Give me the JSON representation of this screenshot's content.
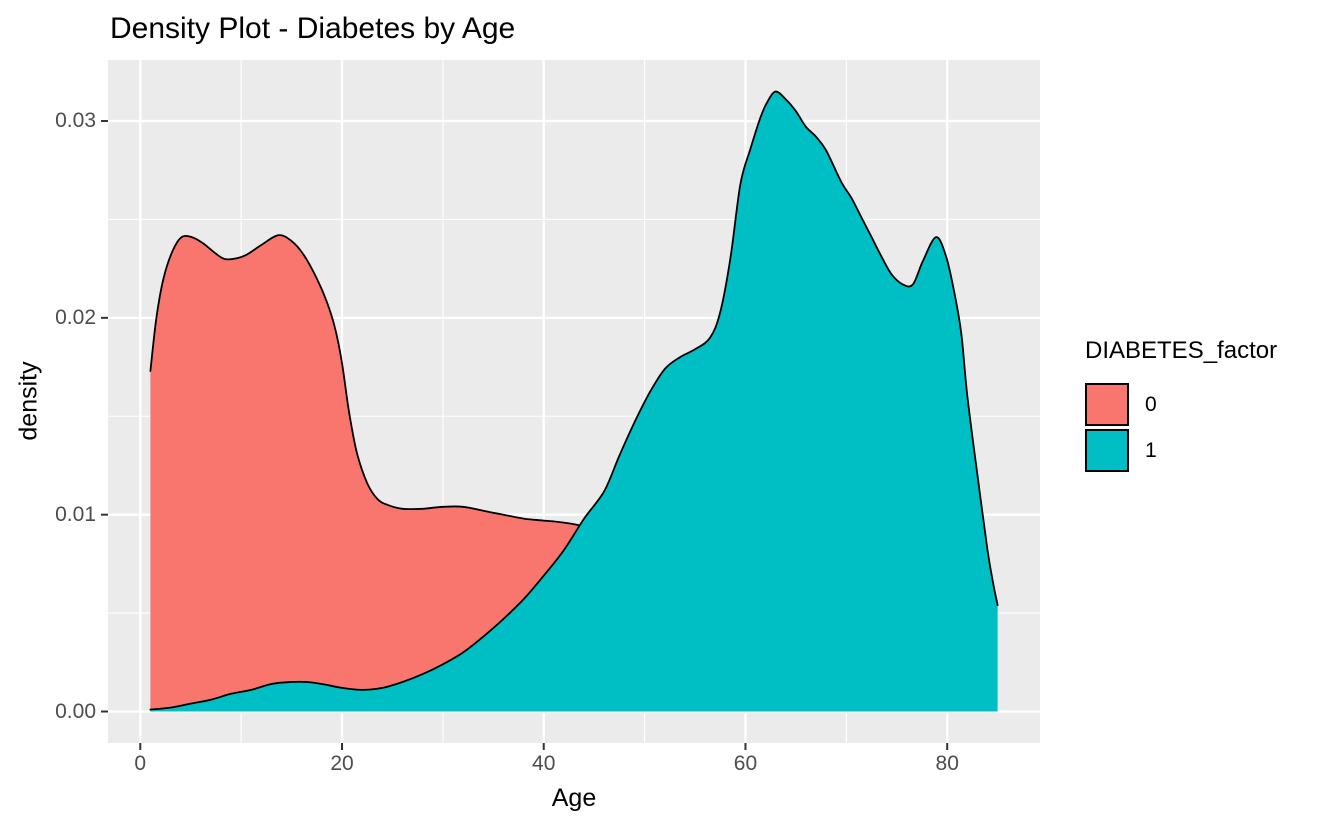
{
  "title": "Density Plot - Diabetes by Age",
  "legend": {
    "title": "DIABETES_factor",
    "entries": [
      {
        "label": "0",
        "color": "#F8766D"
      },
      {
        "label": "1",
        "color": "#00BFC4"
      }
    ]
  },
  "colors": {
    "panel_background": "#EBEBEB",
    "gridline": "#FFFFFF",
    "tick_label": "#4D4D4D",
    "tick_mark": "#333333",
    "curve_outline": "#000000"
  },
  "chart_data": {
    "type": "area",
    "subtype": "overlapping-density",
    "title": "Density Plot - Diabetes by Age",
    "xlabel": "Age",
    "ylabel": "density",
    "legend_title": "DIABETES_factor",
    "legend_position": "right",
    "grid": "on",
    "x_domain": [
      -3.2,
      89.2
    ],
    "y_domain": [
      -0.0016,
      0.0331
    ],
    "x_ticks": {
      "values": [
        0,
        20,
        40,
        60,
        80
      ],
      "labels": [
        "0",
        "20",
        "40",
        "60",
        "80"
      ]
    },
    "y_ticks": {
      "values": [
        0,
        0.01,
        0.02,
        0.03
      ],
      "labels": [
        "0.00",
        "0.01",
        "0.02",
        "0.03"
      ]
    },
    "x_minor": [
      10,
      30,
      50,
      70
    ],
    "y_minor": [
      0.005,
      0.015,
      0.025
    ],
    "series": [
      {
        "name": "0",
        "fill": "#F8766D",
        "points": [
          [
            1,
            0.0173
          ],
          [
            1.6,
            0.02
          ],
          [
            2.3,
            0.022
          ],
          [
            3.2,
            0.0234
          ],
          [
            4.1,
            0.0241
          ],
          [
            5.1,
            0.0241
          ],
          [
            6.2,
            0.0238
          ],
          [
            7.4,
            0.0233
          ],
          [
            8.3,
            0.023
          ],
          [
            9.3,
            0.023
          ],
          [
            10.5,
            0.0232
          ],
          [
            12,
            0.0237
          ],
          [
            13.7,
            0.0242
          ],
          [
            15,
            0.0239
          ],
          [
            16.2,
            0.0232
          ],
          [
            17.5,
            0.022
          ],
          [
            18.5,
            0.0208
          ],
          [
            19.3,
            0.0195
          ],
          [
            20,
            0.0177
          ],
          [
            20.7,
            0.0152
          ],
          [
            21.5,
            0.0131
          ],
          [
            22.5,
            0.0116
          ],
          [
            23.5,
            0.0108
          ],
          [
            24.5,
            0.0105
          ],
          [
            26,
            0.0103
          ],
          [
            28,
            0.0103
          ],
          [
            30,
            0.0104
          ],
          [
            32,
            0.0104
          ],
          [
            34,
            0.0102
          ],
          [
            36,
            0.01
          ],
          [
            38,
            0.0098
          ],
          [
            40,
            0.0097
          ],
          [
            42,
            0.0096
          ],
          [
            44,
            0.0094
          ],
          [
            46,
            0.009
          ],
          [
            49,
            0.008
          ],
          [
            52,
            0.0063
          ],
          [
            55,
            0.0045
          ],
          [
            58,
            0.0028
          ],
          [
            61,
            0.0015
          ],
          [
            64,
            0.0007
          ],
          [
            67,
            0.0003
          ],
          [
            70,
            0.0001
          ]
        ]
      },
      {
        "name": "1",
        "fill": "#00BFC4",
        "points": [
          [
            1,
            0.0001
          ],
          [
            3,
            0.0002
          ],
          [
            5,
            0.0004
          ],
          [
            7,
            0.0006
          ],
          [
            9,
            0.0009
          ],
          [
            11,
            0.0011
          ],
          [
            13,
            0.0014
          ],
          [
            15,
            0.0015
          ],
          [
            16.5,
            0.0015
          ],
          [
            18,
            0.0014
          ],
          [
            20,
            0.0012
          ],
          [
            22,
            0.0011
          ],
          [
            24,
            0.0012
          ],
          [
            26,
            0.0015
          ],
          [
            28,
            0.0019
          ],
          [
            30,
            0.0024
          ],
          [
            32,
            0.003
          ],
          [
            34,
            0.0038
          ],
          [
            36,
            0.0047
          ],
          [
            38,
            0.0057
          ],
          [
            40,
            0.0069
          ],
          [
            42,
            0.0082
          ],
          [
            44,
            0.0098
          ],
          [
            46,
            0.0112
          ],
          [
            47.5,
            0.013
          ],
          [
            49,
            0.0147
          ],
          [
            50.5,
            0.0162
          ],
          [
            52,
            0.0174
          ],
          [
            53.5,
            0.018
          ],
          [
            55,
            0.0184
          ],
          [
            56.5,
            0.019
          ],
          [
            57.5,
            0.0203
          ],
          [
            58.5,
            0.023
          ],
          [
            59.5,
            0.0268
          ],
          [
            60.5,
            0.0286
          ],
          [
            61.5,
            0.0302
          ],
          [
            62.2,
            0.031
          ],
          [
            63,
            0.0315
          ],
          [
            64,
            0.0311
          ],
          [
            65,
            0.0305
          ],
          [
            66,
            0.0297
          ],
          [
            67,
            0.0292
          ],
          [
            68,
            0.0285
          ],
          [
            69.5,
            0.0269
          ],
          [
            70.5,
            0.0261
          ],
          [
            71.5,
            0.0251
          ],
          [
            72.5,
            0.0241
          ],
          [
            73.5,
            0.0231
          ],
          [
            74.5,
            0.0222
          ],
          [
            75.6,
            0.0217
          ],
          [
            76.6,
            0.0217
          ],
          [
            77.6,
            0.0229
          ],
          [
            78.9,
            0.0241
          ],
          [
            79.9,
            0.0231
          ],
          [
            80.7,
            0.0213
          ],
          [
            81.4,
            0.0192
          ],
          [
            82,
            0.016
          ],
          [
            83,
            0.012
          ],
          [
            84,
            0.0082
          ],
          [
            84.6,
            0.0064
          ],
          [
            85,
            0.0054
          ]
        ]
      }
    ]
  }
}
